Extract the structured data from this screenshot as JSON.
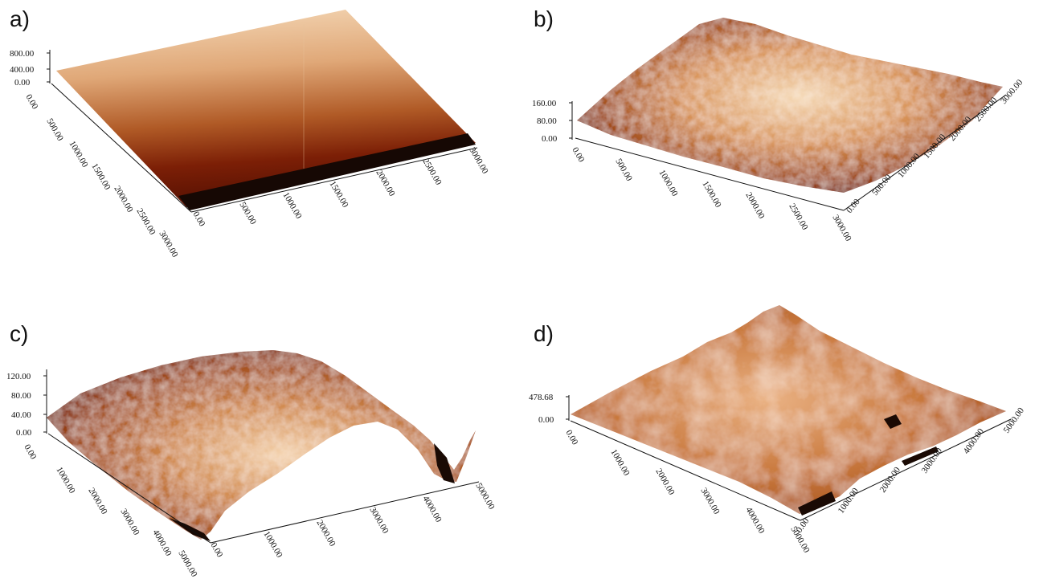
{
  "panels": [
    {
      "label": "a)",
      "z_ticks": [
        "800.00",
        "400.00",
        "0.00"
      ],
      "left_axis_ticks": [
        "0.00",
        "500.00",
        "1000.00",
        "1500.00",
        "2000.00",
        "2500.00",
        "3000.00"
      ],
      "front_axis_ticks": [
        "0.00",
        "500.00",
        "1000.00",
        "1500.00",
        "2000.00",
        "2500.00",
        "3000.00"
      ]
    },
    {
      "label": "b)",
      "z_ticks": [
        "160.00",
        "80.00",
        "0.00"
      ],
      "front_axis_ticks": [
        "0.00",
        "500.00",
        "1000.00",
        "1500.00",
        "2000.00",
        "2500.00",
        "3000.00"
      ],
      "right_axis_ticks": [
        "0.00",
        "500.00",
        "1000.00",
        "1500.00",
        "2000.00",
        "2500.00",
        "3000.00"
      ]
    },
    {
      "label": "c)",
      "z_ticks": [
        "120.00",
        "80.00",
        "40.00",
        "0.00"
      ],
      "left_axis_ticks": [
        "0.00",
        "1000.00",
        "2000.00",
        "3000.00",
        "4000.00",
        "5000.00"
      ],
      "front_axis_ticks": [
        "0.00",
        "1000.00",
        "2000.00",
        "3000.00",
        "4000.00",
        "5000.00"
      ]
    },
    {
      "label": "d)",
      "z_ticks": [
        "478.68",
        "0.00"
      ],
      "left_axis_ticks": [
        "0.00",
        "1000.00",
        "2000.00",
        "3000.00",
        "4000.00",
        "5000.00"
      ],
      "right_axis_ticks": [
        "0.00",
        "1000.00",
        "2000.00",
        "3000.00",
        "4000.00",
        "5000.00"
      ]
    }
  ],
  "colors": {
    "surface_light": "#f3d3ad",
    "surface_mid": "#c9864a",
    "surface_dark": "#7a1e05",
    "shadow": "#1a0a04"
  }
}
